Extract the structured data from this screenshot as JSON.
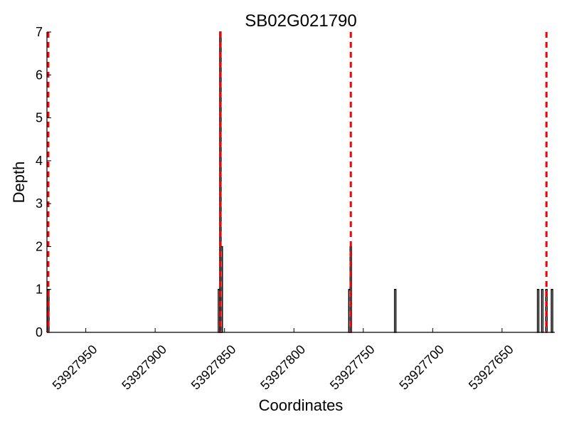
{
  "chart_data": {
    "type": "bar",
    "title": "SB02G021790",
    "xlabel": "Coordinates",
    "ylabel": "Depth",
    "x_axis_inverted": true,
    "xlim": [
      53927978,
      53927612
    ],
    "ylim": [
      0,
      7
    ],
    "xticks": [
      53927950,
      53927900,
      53927850,
      53927800,
      53927750,
      53927700,
      53927650
    ],
    "xtick_labels": [
      "53927950",
      "53927900",
      "53927850",
      "53927800",
      "53927750",
      "53927700",
      "53927650"
    ],
    "yticks": [
      0,
      1,
      2,
      3,
      4,
      5,
      6,
      7
    ],
    "ytick_labels": [
      "0",
      "1",
      "2",
      "3",
      "4",
      "5",
      "6",
      "7"
    ],
    "grid": false,
    "series": [
      {
        "x": [
          53927977,
          53927854,
          53927853,
          53927852,
          53927760,
          53927759,
          53927727,
          53927624,
          53927621,
          53927618,
          53927614
        ],
        "values": [
          1,
          1,
          7,
          2,
          1,
          2,
          1,
          1,
          1,
          1,
          1
        ],
        "color": "#000000"
      }
    ],
    "reference_lines": [
      {
        "x": 53927977,
        "color": "#ff0000",
        "style": "dashed"
      },
      {
        "x": 53927853,
        "color": "#ff0000",
        "style": "dashed"
      },
      {
        "x": 53927759,
        "color": "#ff0000",
        "style": "dashed"
      },
      {
        "x": 53927618,
        "color": "#ff0000",
        "style": "dashed"
      }
    ]
  }
}
